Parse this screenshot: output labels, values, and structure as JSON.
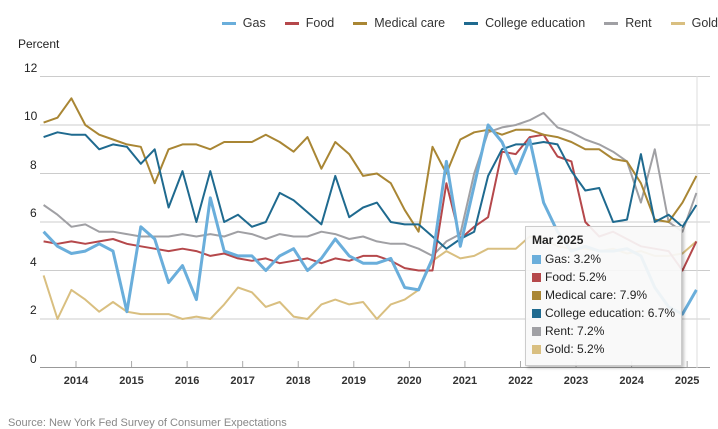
{
  "chart_data": {
    "type": "line",
    "ylabel": "Percent",
    "ylim": [
      0,
      12
    ],
    "yticks": [
      "0",
      "2",
      "4",
      "6",
      "8",
      "10",
      "12"
    ],
    "xticks": [
      "2014",
      "2015",
      "2016",
      "2017",
      "2018",
      "2019",
      "2020",
      "2021",
      "2022",
      "2023",
      "2024",
      "2025"
    ],
    "grid": true,
    "legend_position": "top-right",
    "x": [
      "2013-06",
      "2013-09",
      "2013-12",
      "2014-03",
      "2014-06",
      "2014-09",
      "2014-12",
      "2015-03",
      "2015-06",
      "2015-09",
      "2015-12",
      "2016-03",
      "2016-06",
      "2016-09",
      "2016-12",
      "2017-03",
      "2017-06",
      "2017-09",
      "2017-12",
      "2018-03",
      "2018-06",
      "2018-09",
      "2018-12",
      "2019-03",
      "2019-06",
      "2019-09",
      "2019-12",
      "2020-03",
      "2020-06",
      "2020-09",
      "2020-12",
      "2021-03",
      "2021-06",
      "2021-09",
      "2021-12",
      "2022-03",
      "2022-06",
      "2022-09",
      "2022-12",
      "2023-03",
      "2023-06",
      "2023-09",
      "2023-12",
      "2024-03",
      "2024-06",
      "2024-09",
      "2024-12",
      "2025-03"
    ],
    "series": [
      {
        "name": "Gas",
        "color": "#6aaedb",
        "values": [
          5.6,
          5.0,
          4.7,
          4.8,
          5.1,
          4.8,
          2.3,
          5.8,
          5.3,
          3.5,
          4.2,
          2.8,
          7.0,
          4.8,
          4.6,
          4.6,
          4.0,
          4.6,
          4.9,
          4.0,
          4.5,
          5.3,
          4.6,
          4.3,
          4.3,
          4.5,
          3.3,
          3.2,
          4.5,
          8.5,
          5.0,
          7.5,
          10.0,
          9.3,
          8.0,
          9.4,
          6.8,
          5.6,
          4.8,
          5.0,
          4.8,
          4.8,
          4.9,
          4.6,
          3.3,
          2.5,
          2.2,
          3.2
        ]
      },
      {
        "name": "Food",
        "color": "#b5484b",
        "values": [
          5.2,
          5.1,
          5.2,
          5.1,
          5.2,
          5.3,
          5.1,
          5.0,
          4.9,
          4.8,
          4.9,
          4.8,
          4.6,
          4.7,
          4.5,
          4.4,
          4.5,
          4.3,
          4.4,
          4.5,
          4.3,
          4.5,
          4.4,
          4.6,
          4.6,
          4.4,
          4.1,
          4.0,
          4.0,
          7.6,
          5.3,
          5.8,
          6.2,
          8.9,
          8.8,
          9.5,
          9.6,
          8.7,
          8.5,
          6.0,
          5.4,
          5.6,
          5.3,
          5.0,
          4.9,
          4.8,
          4.0,
          5.2
        ]
      },
      {
        "name": "Medical care",
        "color": "#a98634",
        "values": [
          10.1,
          10.3,
          11.1,
          10.0,
          9.6,
          9.4,
          9.2,
          9.1,
          7.6,
          9.0,
          9.2,
          9.2,
          9.0,
          9.3,
          9.3,
          9.3,
          9.6,
          9.3,
          8.9,
          9.5,
          8.2,
          9.3,
          8.8,
          7.9,
          8.0,
          7.6,
          6.5,
          5.6,
          9.1,
          8.0,
          9.4,
          9.7,
          9.8,
          9.6,
          9.8,
          9.8,
          9.6,
          9.5,
          9.3,
          9.0,
          9.0,
          8.6,
          8.5,
          7.6,
          6.1,
          6.0,
          6.8,
          7.9
        ]
      },
      {
        "name": "College education",
        "color": "#1f6a8f",
        "values": [
          9.5,
          9.7,
          9.6,
          9.6,
          9.0,
          9.2,
          9.1,
          8.4,
          9.0,
          6.6,
          8.1,
          6.0,
          8.1,
          6.0,
          6.3,
          5.8,
          6.0,
          7.2,
          6.9,
          6.4,
          5.9,
          7.9,
          6.2,
          6.6,
          6.8,
          6.0,
          5.9,
          5.9,
          5.4,
          4.9,
          5.3,
          5.6,
          7.9,
          9.0,
          9.2,
          9.2,
          9.3,
          9.2,
          8.1,
          7.3,
          7.4,
          6.0,
          6.1,
          8.8,
          6.0,
          6.3,
          5.8,
          6.7
        ]
      },
      {
        "name": "Rent",
        "color": "#a0a0a4",
        "values": [
          6.7,
          6.3,
          5.8,
          5.9,
          5.6,
          5.6,
          5.5,
          5.4,
          5.4,
          5.4,
          5.5,
          5.4,
          5.5,
          5.4,
          5.6,
          5.5,
          5.3,
          5.5,
          5.4,
          5.4,
          5.6,
          5.5,
          5.3,
          5.4,
          5.2,
          5.1,
          5.1,
          4.9,
          4.6,
          5.2,
          5.5,
          8.0,
          9.7,
          9.9,
          10.0,
          10.2,
          10.5,
          9.9,
          9.7,
          9.4,
          9.2,
          8.9,
          8.5,
          6.8,
          9.0,
          6.0,
          5.6,
          7.2
        ]
      },
      {
        "name": "Gold",
        "color": "#d9bf80",
        "values": [
          3.8,
          2.0,
          3.2,
          2.8,
          2.3,
          2.7,
          2.3,
          2.2,
          2.2,
          2.2,
          2.0,
          2.1,
          2.0,
          2.6,
          3.3,
          3.1,
          2.5,
          2.7,
          2.1,
          2.0,
          2.6,
          2.8,
          2.6,
          2.7,
          2.0,
          2.6,
          2.8,
          3.2,
          4.4,
          4.8,
          4.5,
          4.6,
          4.9,
          4.9,
          4.9,
          5.4,
          5.3,
          5.0,
          4.9,
          4.9,
          4.8,
          4.9,
          4.7,
          4.8,
          4.6,
          4.6,
          4.7,
          5.2
        ]
      }
    ]
  },
  "legend": [
    "Gas",
    "Food",
    "Medical care",
    "College education",
    "Rent",
    "Gold"
  ],
  "tooltip": {
    "title": "Mar 2025",
    "rows": [
      "Gas: 3.2%",
      "Food: 5.2%",
      "Medical care: 7.9%",
      "College education: 6.7%",
      "Rent: 7.2%",
      "Gold: 5.2%"
    ]
  },
  "source": "Source: New York Fed Survey of Consumer Expectations"
}
